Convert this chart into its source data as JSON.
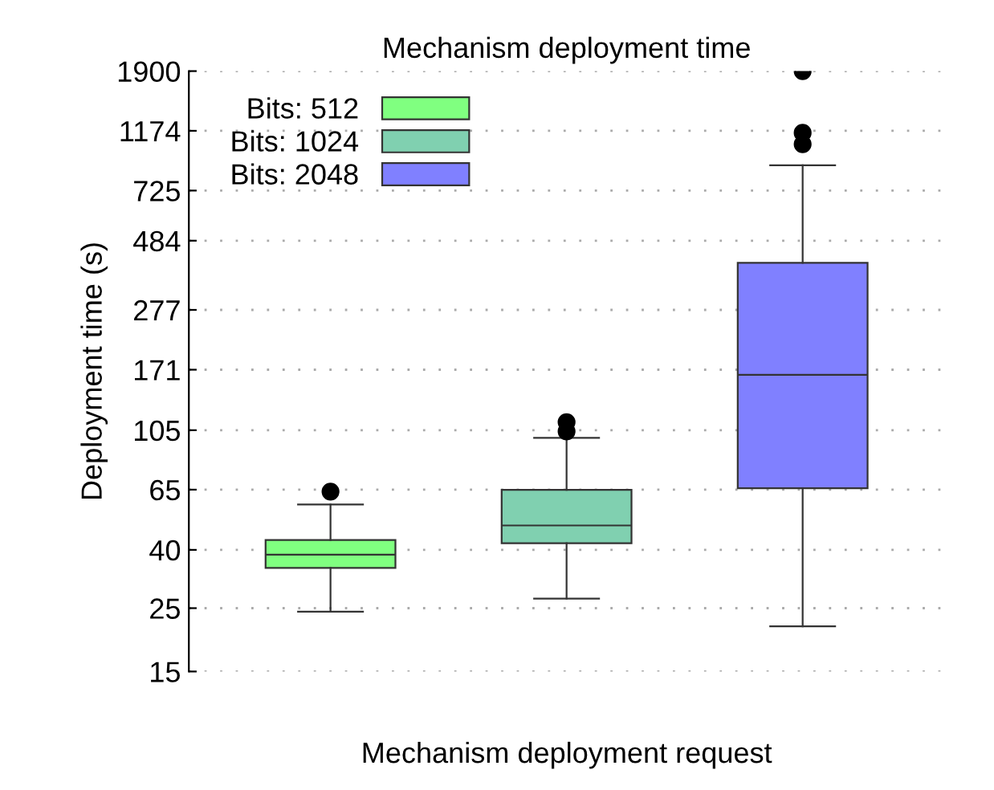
{
  "chart_data": {
    "type": "box",
    "title": "Mechanism deployment time",
    "xlabel": "Mechanism deployment request",
    "ylabel": "Deployment time (s)",
    "categories": [
      null,
      null,
      null
    ],
    "series": [
      {
        "name": "Bits: 512",
        "color": "#80ff80",
        "boxes": [
          {
            "low": 24.3,
            "q1": 34.6,
            "median": 38.5,
            "q3": 43.3,
            "high": 57.7,
            "outliers": [
              64
            ]
          },
          null,
          null
        ]
      },
      {
        "name": "Bits: 1024",
        "color": "#80d0b0",
        "boxes": [
          null,
          {
            "low": 27,
            "q1": 42.2,
            "median": 48.7,
            "q3": 64.9,
            "high": 98.7,
            "outliers": [
              104,
              112
            ]
          },
          null
        ]
      },
      {
        "name": "Bits: 2048",
        "color": "#8080ff",
        "boxes": [
          null,
          null,
          {
            "low": 21.6,
            "q1": 65.8,
            "median": 164,
            "q3": 405,
            "high": 889,
            "outliers": [
              1054,
              1155,
              1900
            ]
          }
        ]
      }
    ],
    "log": true,
    "ylim": [
      15,
      1900
    ],
    "yticks": [
      15,
      25,
      40,
      65,
      105,
      171,
      277,
      484,
      725,
      1174,
      1900
    ],
    "grid": "y",
    "legend": "top left"
  }
}
